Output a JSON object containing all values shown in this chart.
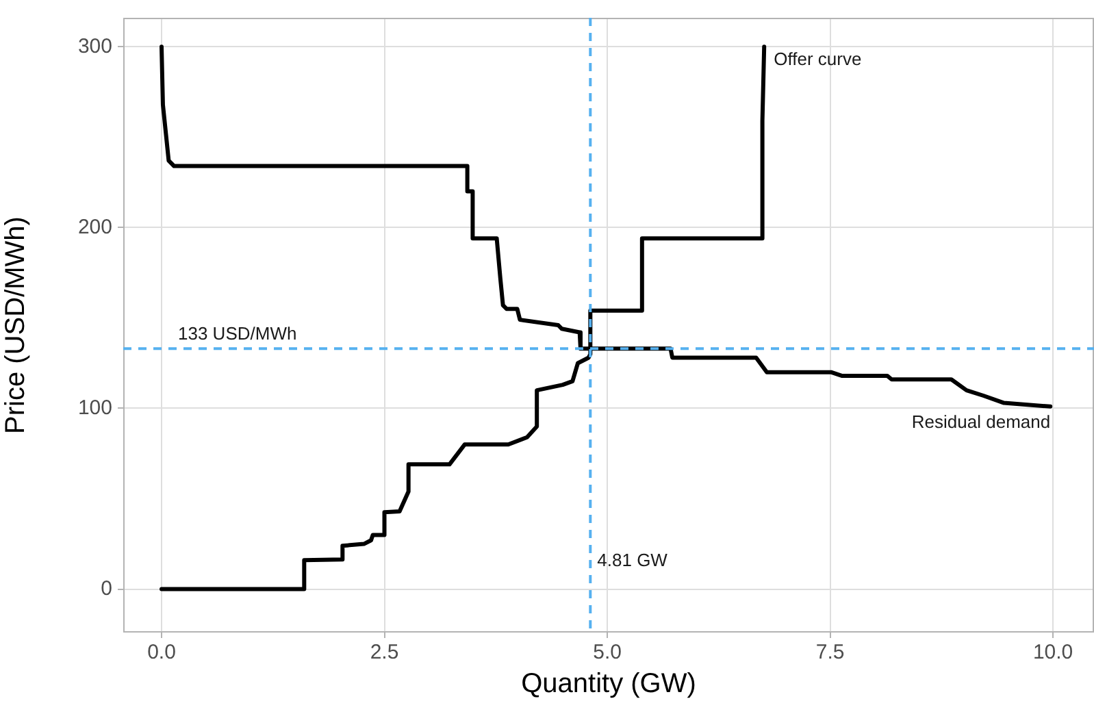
{
  "chart_data": {
    "type": "line",
    "xlabel": "Quantity (GW)",
    "ylabel": "Price (USD/MWh)",
    "xlim": [
      -0.43,
      10.46
    ],
    "ylim": [
      -24,
      316
    ],
    "xticks": [
      {
        "value": 0,
        "label": "0.0"
      },
      2.5,
      {
        "value": 5,
        "label": "5.0"
      },
      7.5,
      {
        "value": 10,
        "label": "10.0"
      }
    ],
    "yticks": [
      0,
      100,
      200,
      300
    ],
    "grid": true,
    "legend": false,
    "line_style": "solid",
    "marker": "none",
    "series": [
      {
        "name": "Offer curve",
        "color": "#000000",
        "x": [
          0,
          1.6,
          1.6,
          2.03,
          2.03,
          2.27,
          2.35,
          2.37,
          2.5,
          2.5,
          2.67,
          2.77,
          2.77,
          3.23,
          3.4,
          3.89,
          4.1,
          4.21,
          4.21,
          4.5,
          4.61,
          4.67,
          4.79,
          4.81,
          4.81,
          5.39,
          5.39,
          6.74,
          6.74,
          6.76
        ],
        "values": [
          0,
          0,
          16,
          16.4,
          24,
          25,
          27,
          30,
          30,
          42.5,
          43,
          54,
          69,
          69,
          80,
          80,
          84,
          90,
          110,
          113,
          115,
          125,
          128,
          130,
          154,
          154,
          194,
          194,
          259,
          300
        ]
      },
      {
        "name": "Residual demand",
        "color": "#000000",
        "x": [
          0,
          0.015,
          0.08,
          0.14,
          3.43,
          3.43,
          3.49,
          3.49,
          3.76,
          3.8,
          3.83,
          3.87,
          3.99,
          4.02,
          4.45,
          4.49,
          4.69,
          4.7,
          5.71,
          5.73,
          6.67,
          6.79,
          7.51,
          7.63,
          8.14,
          8.19,
          8.86,
          9.03,
          9.22,
          9.45,
          9.97
        ],
        "values": [
          300,
          268,
          237,
          234,
          234,
          220,
          220,
          194,
          194,
          172,
          157,
          155,
          155,
          149,
          146,
          144,
          142,
          133,
          133,
          128,
          128,
          120,
          120,
          118,
          118,
          116,
          116,
          110,
          107,
          103,
          101
        ]
      }
    ],
    "ref_lines": [
      {
        "axis": "y",
        "value": 133,
        "label": "133 USD/MWh",
        "color": "#56b1f0",
        "line_style": "dashed"
      },
      {
        "axis": "x",
        "value": 4.81,
        "label": "4.81 GW",
        "color": "#56b1f0",
        "line_style": "dashed"
      }
    ]
  }
}
